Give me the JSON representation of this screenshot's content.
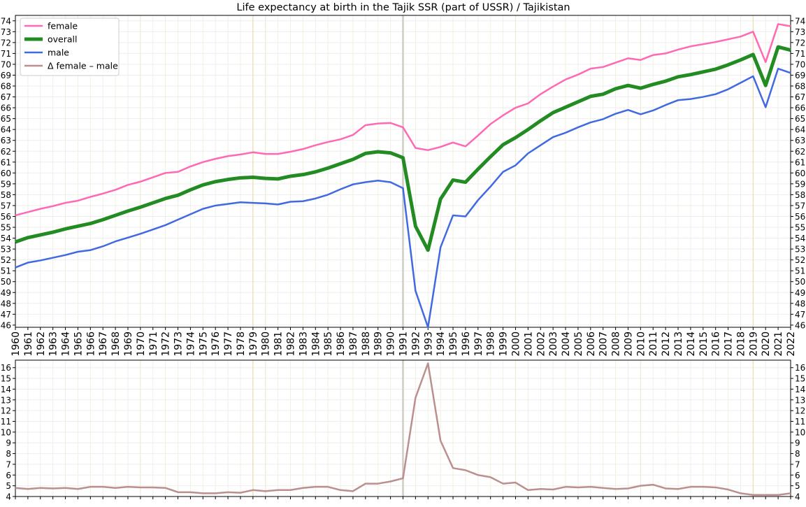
{
  "chart_data": [
    {
      "type": "line",
      "title": "Life expectancy at birth in the Tajik SSR (part of USSR)  /  Tajikistan",
      "xlabel": "",
      "ylabel": "",
      "ylim": [
        45.8,
        74.5
      ],
      "yticks": [
        46,
        47,
        48,
        49,
        50,
        51,
        52,
        53,
        54,
        55,
        56,
        57,
        58,
        59,
        60,
        61,
        62,
        63,
        64,
        65,
        66,
        67,
        68,
        69,
        70,
        71,
        72,
        73,
        74
      ],
      "grid": true,
      "legend_position": "top-left",
      "x": [
        1960,
        1961,
        1962,
        1963,
        1964,
        1965,
        1966,
        1967,
        1968,
        1969,
        1970,
        1971,
        1972,
        1973,
        1974,
        1975,
        1976,
        1977,
        1978,
        1979,
        1980,
        1981,
        1982,
        1983,
        1984,
        1985,
        1986,
        1987,
        1988,
        1989,
        1990,
        1991,
        1992,
        1993,
        1994,
        1995,
        1996,
        1997,
        1998,
        1999,
        2000,
        2001,
        2002,
        2003,
        2004,
        2005,
        2006,
        2007,
        2008,
        2009,
        2010,
        2011,
        2012,
        2013,
        2014,
        2015,
        2016,
        2017,
        2018,
        2019,
        2020,
        2021,
        2022
      ],
      "series": [
        {
          "name": "female",
          "color": "#ff69b4",
          "values": [
            56.1,
            56.4,
            56.7,
            56.95,
            57.25,
            57.45,
            57.8,
            58.1,
            58.45,
            58.9,
            59.2,
            59.6,
            60.0,
            60.1,
            60.6,
            61.0,
            61.3,
            61.55,
            61.7,
            61.9,
            61.75,
            61.75,
            61.95,
            62.2,
            62.55,
            62.85,
            63.1,
            63.5,
            64.4,
            64.55,
            64.6,
            64.2,
            62.3,
            62.1,
            62.4,
            62.8,
            62.45,
            63.45,
            64.5,
            65.3,
            66.0,
            66.4,
            67.25,
            67.95,
            68.6,
            69.05,
            69.6,
            69.75,
            70.15,
            70.55,
            70.4,
            70.85,
            71.0,
            71.35,
            71.65,
            71.85,
            72.05,
            72.3,
            72.55,
            73.0,
            70.2,
            73.7,
            73.5
          ]
        },
        {
          "name": "overall",
          "color": "#228b22",
          "values": [
            53.65,
            54.05,
            54.3,
            54.55,
            54.85,
            55.1,
            55.35,
            55.7,
            56.1,
            56.5,
            56.85,
            57.25,
            57.65,
            57.95,
            58.45,
            58.9,
            59.2,
            59.4,
            59.55,
            59.6,
            59.5,
            59.45,
            59.7,
            59.85,
            60.1,
            60.45,
            60.85,
            61.25,
            61.8,
            61.95,
            61.85,
            61.4,
            55.1,
            52.9,
            57.6,
            59.35,
            59.15,
            60.35,
            61.5,
            62.6,
            63.25,
            64.0,
            64.8,
            65.55,
            66.05,
            66.55,
            67.05,
            67.25,
            67.75,
            68.05,
            67.8,
            68.15,
            68.45,
            68.85,
            69.05,
            69.3,
            69.55,
            69.95,
            70.4,
            70.9,
            68.05,
            71.6,
            71.3
          ]
        },
        {
          "name": "male",
          "color": "#4169e1",
          "values": [
            51.3,
            51.75,
            51.95,
            52.2,
            52.45,
            52.75,
            52.9,
            53.25,
            53.7,
            54.05,
            54.4,
            54.8,
            55.2,
            55.7,
            56.2,
            56.7,
            57.0,
            57.15,
            57.3,
            57.25,
            57.2,
            57.1,
            57.35,
            57.4,
            57.65,
            58.0,
            58.5,
            58.95,
            59.15,
            59.3,
            59.15,
            58.6,
            49.15,
            45.8,
            53.15,
            56.1,
            56.0,
            57.5,
            58.75,
            60.1,
            60.7,
            61.8,
            62.55,
            63.3,
            63.7,
            64.2,
            64.65,
            64.95,
            65.45,
            65.8,
            65.4,
            65.75,
            66.25,
            66.7,
            66.8,
            67.0,
            67.25,
            67.7,
            68.3,
            68.9,
            66.05,
            69.6,
            69.2
          ]
        },
        {
          "name": "Δ female – male",
          "color": "#bc8f8f",
          "values": [
            4.8,
            4.7,
            4.8,
            4.75,
            4.8,
            4.7,
            4.9,
            4.9,
            4.8,
            4.9,
            4.85,
            4.85,
            4.8,
            4.4,
            4.4,
            4.3,
            4.3,
            4.4,
            4.35,
            4.6,
            4.5,
            4.6,
            4.6,
            4.8,
            4.9,
            4.9,
            4.6,
            4.5,
            5.2,
            5.2,
            5.4,
            5.7,
            13.2,
            16.4,
            9.2,
            6.65,
            6.45,
            6.0,
            5.8,
            5.2,
            5.3,
            4.6,
            4.7,
            4.65,
            4.9,
            4.85,
            4.9,
            4.8,
            4.7,
            4.75,
            5.0,
            5.1,
            4.75,
            4.7,
            4.9,
            4.9,
            4.85,
            4.65,
            4.3,
            4.15,
            4.15,
            4.15,
            4.3
          ]
        }
      ],
      "xticks": [
        "1960",
        "1961",
        "1962",
        "1963",
        "1964",
        "1965",
        "1966",
        "1967",
        "1968",
        "1969",
        "1970",
        "1971",
        "1972",
        "1973",
        "1974",
        "1975",
        "1976",
        "1977",
        "1978",
        "1979",
        "1980",
        "1981",
        "1982",
        "1983",
        "1984",
        "1985",
        "1986",
        "1987",
        "1988",
        "1989",
        "1990",
        "1991",
        "1992",
        "1993",
        "1994",
        "1995",
        "1996",
        "1997",
        "1998",
        "1999",
        "2000",
        "2001",
        "2002",
        "2003",
        "2004",
        "2005",
        "2006",
        "2007",
        "2008",
        "2009",
        "2010",
        "2011",
        "2012",
        "2013",
        "2014",
        "2015",
        "2016",
        "2017",
        "2018",
        "2019",
        "2020",
        "2021",
        "2022"
      ]
    },
    {
      "type": "line",
      "title": "",
      "ylim": [
        4,
        16.7
      ],
      "yticks": [
        4,
        5,
        6,
        7,
        8,
        9,
        10,
        11,
        12,
        13,
        14,
        15,
        16
      ],
      "grid": true,
      "series_ref": "Δ female – male",
      "color": "#bc8f8f"
    }
  ]
}
